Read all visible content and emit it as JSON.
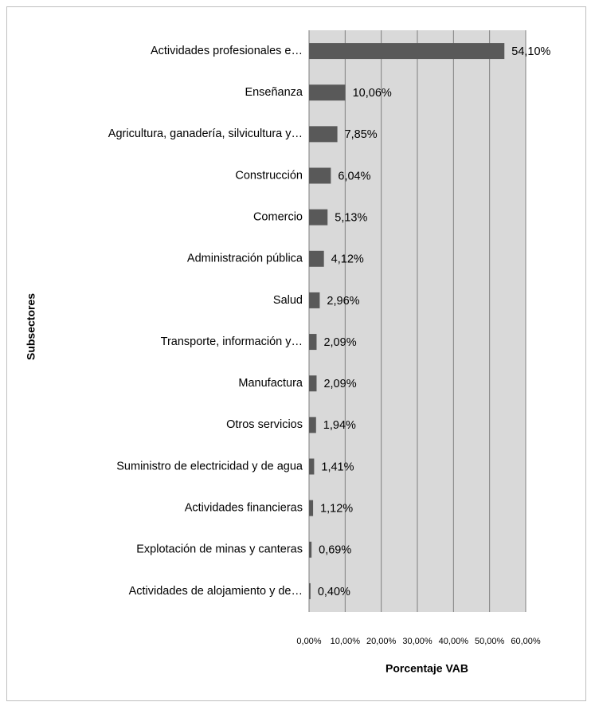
{
  "chart_data": {
    "type": "bar",
    "orientation": "horizontal",
    "x_label": "Porcentaje VAB",
    "y_label": "Subsectores",
    "categories": [
      "Actividades profesionales e…",
      "Enseñanza",
      "Agricultura, ganadería, silvicultura y…",
      "Construcción",
      "Comercio",
      "Administración pública",
      "Salud",
      "Transporte, información y…",
      "Manufactura",
      "Otros servicios",
      "Suministro de electricidad y de agua",
      "Actividades financieras",
      "Explotación de minas y canteras",
      "Actividades de alojamiento y de…"
    ],
    "values": [
      54.1,
      10.06,
      7.85,
      6.04,
      5.13,
      4.12,
      2.96,
      2.09,
      2.09,
      1.94,
      1.41,
      1.12,
      0.69,
      0.4
    ],
    "value_labels": [
      "54,10%",
      "10,06%",
      "7,85%",
      "6,04%",
      "5,13%",
      "4,12%",
      "2,96%",
      "2,09%",
      "2,09%",
      "1,94%",
      "1,41%",
      "1,12%",
      "0,69%",
      "0,40%"
    ],
    "color": "#595959",
    "xlim": [
      0,
      60
    ],
    "xticks": [
      {
        "value": 0,
        "label": "0,00%"
      },
      {
        "value": 10,
        "label": "10,00%"
      },
      {
        "value": 20,
        "label": "20,00%"
      },
      {
        "value": 30,
        "label": "30,00%"
      },
      {
        "value": 40,
        "label": "40,00%"
      },
      {
        "value": 50,
        "label": "50,00%"
      },
      {
        "value": 60,
        "label": "60,00%"
      }
    ],
    "grid": true
  }
}
